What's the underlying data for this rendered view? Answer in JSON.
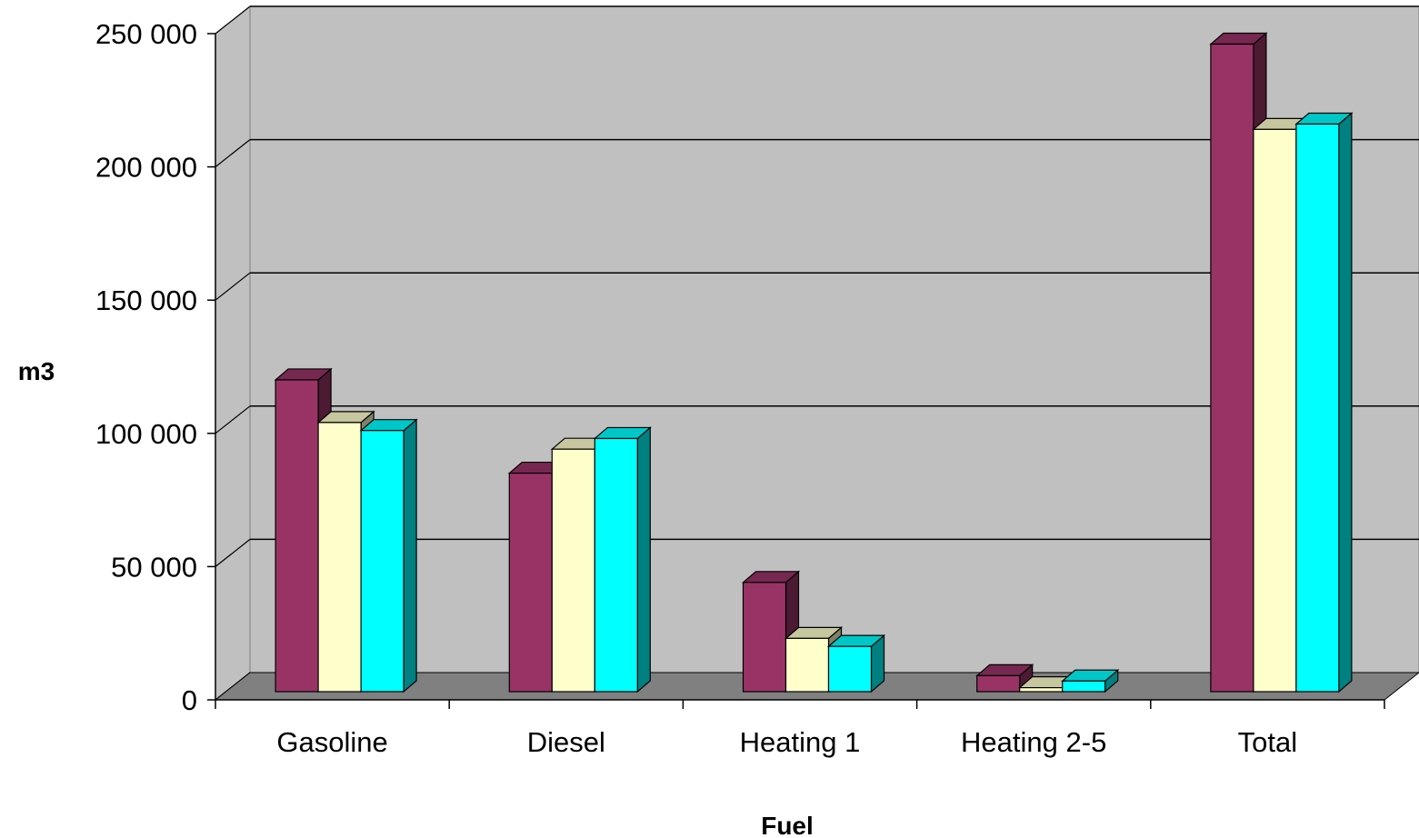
{
  "chart_data": {
    "type": "bar",
    "title": "",
    "xlabel": "Fuel",
    "ylabel": "m3",
    "categories": [
      "Gasoline",
      "Diesel",
      "Heating 1",
      "Heating 2-5",
      "Total"
    ],
    "series": [
      {
        "color": "#993366",
        "values": [
          117000,
          82000,
          41000,
          6000,
          243000
        ]
      },
      {
        "color": "#FFFFCC",
        "values": [
          101000,
          91000,
          20000,
          1500,
          211000
        ]
      },
      {
        "color": "#00FFFF",
        "values": [
          98000,
          95000,
          17000,
          4000,
          213000
        ]
      }
    ],
    "ylim": [
      0,
      250000
    ],
    "yticks": [
      0,
      50000,
      100000,
      150000,
      200000,
      250000
    ],
    "ytick_labels": [
      "0",
      "50 000",
      "100 000",
      "150 000",
      "200 000",
      "250 000"
    ],
    "grid": true,
    "legend": "none",
    "style": "3d-clustered-column",
    "wall_color": "#C0C0C0",
    "floor_color": "#808080"
  }
}
